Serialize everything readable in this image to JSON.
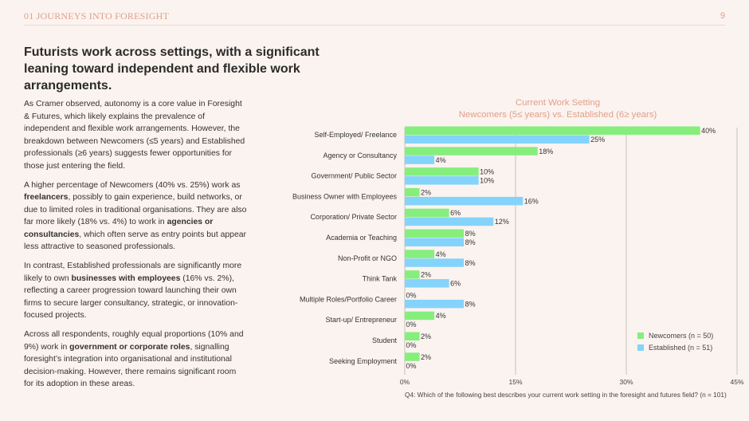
{
  "header": {
    "section": "01 JOURNEYS INTO FORESIGHT",
    "page_number": "9"
  },
  "headline": "Futurists work across settings, with a significant leaning toward independent and flexible work arrangements.",
  "body": {
    "p1": "As Cramer observed, autonomy is a core value in Foresight & Futures, which likely explains the prevalence of independent and flexible work arrangements. However, the breakdown between Newcomers (≤5 years) and Established professionals (≥6 years) suggests fewer opportunities for those just entering the field.",
    "p2_a": "A higher percentage of Newcomers (40% vs. 25%) work as ",
    "p2_b": "freelancers",
    "p2_c": ", possibly to gain experience, build networks, or due to limited roles in traditional organisations. They are also far more likely (18% vs. 4%) to work in ",
    "p2_d": "agencies or consultancies",
    "p2_e": ", which often serve as entry points but appear less attractive to seasoned professionals.",
    "p3_a": "In contrast, Established professionals are significantly more likely to own ",
    "p3_b": "businesses with employees",
    "p3_c": " (16% vs. 2%), reflecting a career progression toward launching their own firms to secure larger consultancy, strategic, or innovation-focused projects.",
    "p4_a": "Across all respondents, roughly equal proportions (10% and 9%) work in ",
    "p4_b": "government or corporate roles",
    "p4_c": ", signalling foresight’s integration into organisational and institutional decision-making. However, there remains significant room for its adoption in these areas."
  },
  "colors": {
    "newcomers": "#86ee7d",
    "established": "#84d3fb",
    "accent": "#e0a08a",
    "grid": "#b9b3b1"
  },
  "footnote": "Q4: Which of the following best describes your current work setting in the foresight and futures field? (n = 101)",
  "chart_data": {
    "type": "bar",
    "orientation": "horizontal",
    "title": "Current Work Setting",
    "subtitle": "Newcomers (5≤ years) vs. Established (6≥ years)",
    "categories": [
      "Self-Employed/ Freelance",
      "Agency or Consultancy",
      "Government/ Public Sector",
      "Business Owner with Employees",
      "Corporation/ Private Sector",
      "Academia or Teaching",
      "Non-Profit or NGO",
      "Think Tank",
      "Multiple Roles/Portfolio Career",
      "Start-up/ Entrepreneur",
      "Student",
      "Seeking Employment"
    ],
    "series": [
      {
        "name": "Newcomers (n = 50)",
        "values": [
          40,
          18,
          10,
          2,
          6,
          8,
          4,
          2,
          0,
          4,
          2,
          2
        ]
      },
      {
        "name": "Established (n = 51)",
        "values": [
          25,
          4,
          10,
          16,
          12,
          8,
          8,
          6,
          8,
          0,
          0,
          0
        ]
      }
    ],
    "value_labels": {
      "newcomers": [
        "40%",
        "18%",
        "10%",
        "2%",
        "6%",
        "8%",
        "4%",
        "2%",
        "0%",
        "4%",
        "2%",
        "2%"
      ],
      "established": [
        "25%",
        "4%",
        "10%",
        "16%",
        "12%",
        "8%",
        "8%",
        "6%",
        "8%",
        "0%",
        "0%",
        "0%"
      ]
    },
    "xlim": [
      0,
      45
    ],
    "xticks": [
      0,
      15,
      30,
      45
    ],
    "xtick_labels": [
      "0%",
      "15%",
      "30%",
      "45%"
    ],
    "grid": true,
    "legend_position": "bottom-right"
  }
}
